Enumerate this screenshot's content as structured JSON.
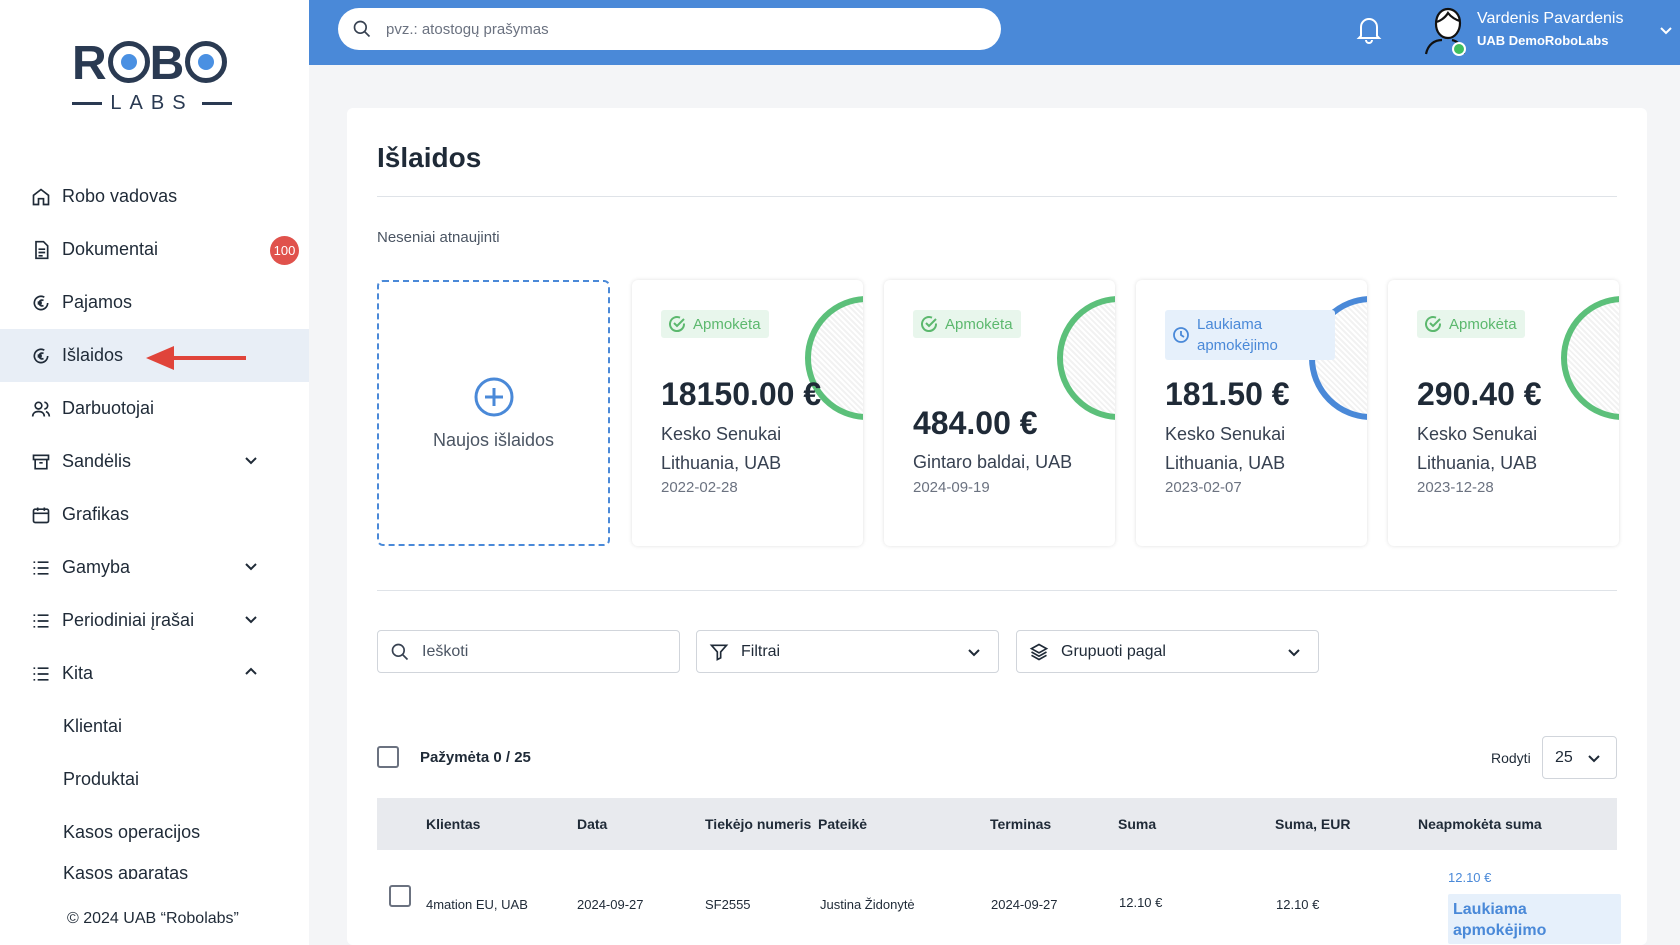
{
  "logo": {
    "text": "ROBO",
    "sub": "LABS"
  },
  "sidebar": {
    "items": [
      {
        "label": "Robo vadovas",
        "icon": "home-icon"
      },
      {
        "label": "Dokumentai",
        "icon": "document-icon",
        "badge": "100"
      },
      {
        "label": "Pajamos",
        "icon": "euro-income-icon"
      },
      {
        "label": "Išlaidos",
        "icon": "euro-expense-icon",
        "active": true
      },
      {
        "label": "Darbuotojai",
        "icon": "users-icon"
      },
      {
        "label": "Sandėlis",
        "icon": "archive-icon",
        "expandable": true
      },
      {
        "label": "Grafikas",
        "icon": "calendar-icon"
      },
      {
        "label": "Gamyba",
        "icon": "list-icon",
        "expandable": true
      },
      {
        "label": "Periodiniai įrašai",
        "icon": "list-icon",
        "expandable": true
      },
      {
        "label": "Kita",
        "icon": "list-icon",
        "expanded": true
      }
    ],
    "sub_items": [
      "Klientai",
      "Produktai",
      "Kasos operacijos",
      "Kasos aparatas"
    ],
    "copyright": "© 2024 UAB “Robolabs”",
    "arrow_color": "#e0443a"
  },
  "topbar": {
    "search_placeholder": "pvz.: atostogų prašymas",
    "user_name": "Vardenis Pavardenis",
    "user_company": "UAB DemoRoboLabs",
    "bg_color": "#4a89d8"
  },
  "main": {
    "title": "Išlaidos",
    "recent_label": "Neseniai atnaujinti",
    "new_expense_label": "Naujos išlaidos",
    "cards": [
      {
        "status": "Apmokėta",
        "status_type": "paid",
        "amount": "18150.00 €",
        "company": "Kesko Senukai Lithuania, UAB",
        "date": "2022-02-28"
      },
      {
        "status": "Apmokėta",
        "status_type": "paid",
        "amount": "484.00 €",
        "company": "Gintaro baldai, UAB",
        "date": "2024-09-19"
      },
      {
        "status": "Laukiama apmokėjimo",
        "status_type": "wait",
        "amount": "181.50 €",
        "company": "Kesko Senukai Lithuania, UAB",
        "date": "2023-02-07"
      },
      {
        "status": "Apmokėta",
        "status_type": "paid",
        "amount": "290.40 €",
        "company": "Kesko Senukai Lithuania, UAB",
        "date": "2023-12-28"
      }
    ],
    "search_placeholder": "Ieškoti",
    "filters_label": "Filtrai",
    "group_label": "Grupuoti pagal",
    "selected_label": "Pažymėta 0 / 25",
    "show_label": "Rodyti",
    "show_value": "25",
    "table": {
      "headers": [
        "Klientas",
        "Data",
        "Tiekėjo numeris",
        "Pateikė",
        "Terminas",
        "Suma",
        "Suma, EUR",
        "Neapmokėta suma"
      ],
      "rows": [
        {
          "client": "4mation EU, UAB",
          "date": "2024-09-27",
          "supplier_no": "SF2555",
          "submitted_by": "Justina Židonytė",
          "due": "2024-09-27",
          "amount": "12.10 €",
          "amount_eur": "12.10 €",
          "unpaid": "12.10 €",
          "unpaid_status": "Laukiama apmokėjimo"
        }
      ]
    }
  }
}
